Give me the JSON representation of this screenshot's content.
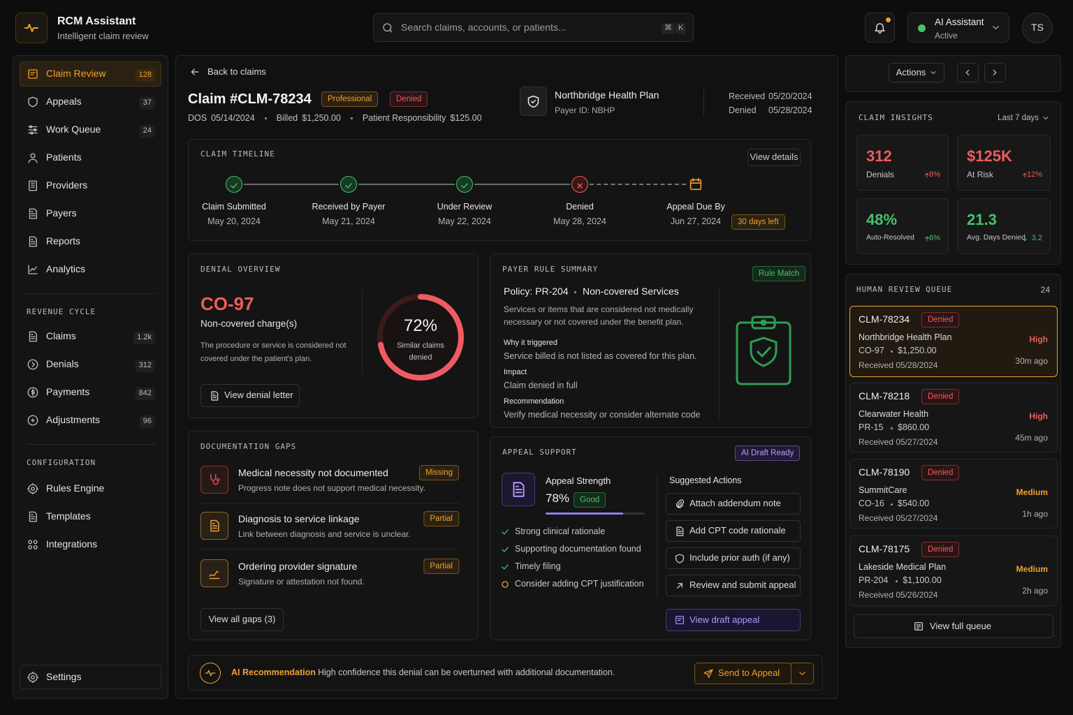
{
  "header": {
    "app_title": "RCM Assistant",
    "app_subtitle": "Intelligent claim review",
    "search_placeholder": "Search claims, accounts, or patients...",
    "shortcut": [
      "⌘",
      "K"
    ],
    "assistant_name": "AI Assistant",
    "assistant_status": "Active",
    "avatar": "TS"
  },
  "sidebar": {
    "main": [
      {
        "label": "Claim Review",
        "count": "128"
      },
      {
        "label": "Appeals",
        "count": "37"
      },
      {
        "label": "Work Queue",
        "count": "24"
      },
      {
        "label": "Patients"
      },
      {
        "label": "Providers"
      },
      {
        "label": "Payers"
      },
      {
        "label": "Reports"
      },
      {
        "label": "Analytics"
      }
    ],
    "revenue_cycle": {
      "heading": "REVENUE CYCLE",
      "items": [
        {
          "label": "Claims",
          "count": "1.2k"
        },
        {
          "label": "Denials",
          "count": "312"
        },
        {
          "label": "Payments",
          "count": "842"
        },
        {
          "label": "Adjustments",
          "count": "96"
        }
      ]
    },
    "configuration": {
      "heading": "CONFIGURATION",
      "items": [
        {
          "label": "Rules Engine"
        },
        {
          "label": "Templates"
        },
        {
          "label": "Integrations"
        }
      ]
    },
    "settings": "Settings"
  },
  "claim": {
    "back": "Back to claims",
    "title": "Claim #CLM-78234",
    "tags": [
      "Professional",
      "Denied"
    ],
    "meta": [
      {
        "label": "DOS",
        "value": "05/14/2024"
      },
      {
        "label": "Billed",
        "value": "$1,250.00"
      },
      {
        "label": "Patient Responsibility",
        "value": "$125.00"
      }
    ],
    "payer": {
      "name": "Northbridge Health Plan",
      "id_label": "Payer ID:",
      "id": "NBHP"
    },
    "dates": [
      {
        "label": "Received",
        "value": "05/20/2024"
      },
      {
        "label": "Denied",
        "value": "05/28/2024"
      }
    ]
  },
  "timeline": {
    "heading": "CLAIM TIMELINE",
    "action": "View details",
    "steps": [
      {
        "label": "Claim Submitted",
        "date": "May 20, 2024",
        "status": "done"
      },
      {
        "label": "Received by Payer",
        "date": "May 21, 2024",
        "status": "done"
      },
      {
        "label": "Under Review",
        "date": "May 22, 2024",
        "status": "done"
      },
      {
        "label": "Denied",
        "date": "May 28, 2024",
        "status": "denied"
      },
      {
        "label": "Appeal Due By",
        "date": "Jun 27, 2024",
        "status": "due",
        "badge": "30 days left"
      }
    ]
  },
  "denial_overview": {
    "heading": "DENIAL OVERVIEW",
    "code": "CO-97",
    "reason": "Non-covered charge(s)",
    "description": "The procedure or service is considered not covered under the patient's plan.",
    "donut": {
      "value": 72,
      "label": "72%"
    },
    "donut_caption": "Similar claims denied",
    "action": "View denial letter"
  },
  "payer_rule": {
    "heading": "PAYER RULE SUMMARY",
    "badge": "Rule Match",
    "policy": "Policy: PR-204",
    "policy_name": "Non-covered Services",
    "description": "Services or items that are considered not medically necessary or not covered under the benefit plan.",
    "sections": [
      {
        "label": "Why it triggered",
        "text": "Service billed is not listed as covered for this plan."
      },
      {
        "label": "Impact",
        "text": "Claim denied in full"
      },
      {
        "label": "Recommendation",
        "text": "Verify medical necessity or consider alternate code"
      }
    ]
  },
  "documentation_gaps": {
    "heading": "DOCUMENTATION GAPS",
    "items": [
      {
        "title": "Medical necessity not documented",
        "detail": "Progress note does not support medical necessity.",
        "status": "Missing",
        "color": "#e5484d"
      },
      {
        "title": "Diagnosis to service linkage",
        "detail": "Link between diagnosis and service is unclear.",
        "status": "Partial",
        "color": "#f0a030"
      },
      {
        "title": "Ordering provider signature",
        "detail": "Signature or attestation not found.",
        "status": "Partial",
        "color": "#f0a030"
      }
    ],
    "action": "View all gaps (3)"
  },
  "appeal_support": {
    "heading": "APPEAL SUPPORT",
    "badge": "AI Draft Ready",
    "strength_label": "Appeal Strength",
    "strength": {
      "value": 78,
      "label": "78%"
    },
    "strength_rating": "Good",
    "checks": [
      {
        "text": "Strong clinical rationale",
        "done": true
      },
      {
        "text": "Supporting documentation found",
        "done": true
      },
      {
        "text": "Timely filing",
        "done": true
      },
      {
        "text": "Consider adding CPT justification",
        "done": false
      }
    ],
    "suggested_heading": "Suggested Actions",
    "actions": [
      "Attach addendum note",
      "Add CPT code rationale",
      "Include prior auth (if any)",
      "Review and submit appeal"
    ],
    "primary_action": "View draft appeal"
  },
  "ai_recommendation": {
    "label": "AI Recommendation",
    "text": "High confidence this denial can be overturned with additional documentation.",
    "action": "Send to Appeal"
  },
  "right_panel": {
    "actions": "Actions",
    "insights": {
      "heading": "CLAIM INSIGHTS",
      "period": "Last 7 days",
      "metrics": [
        {
          "value": "312",
          "label": "Denials",
          "change": "8%",
          "direction": "up",
          "color": "#ef5b5b"
        },
        {
          "value": "$125K",
          "label": "At Risk",
          "change": "12%",
          "direction": "up",
          "color": "#ef5b5b"
        },
        {
          "value": "48%",
          "label": "Auto-Resolved",
          "change": "6%",
          "direction": "up",
          "color": "#46c26b"
        },
        {
          "value": "21.3",
          "label": "Avg. Days Denied",
          "change": "3.2",
          "direction": "down",
          "color": "#46c26b"
        }
      ]
    },
    "queue": {
      "heading": "HUMAN REVIEW QUEUE",
      "count": "24",
      "items": [
        {
          "id": "CLM-78234",
          "status": "Denied",
          "payer": "Northbridge Health Plan",
          "code": "CO-97",
          "amount": "$1,250.00",
          "received": "Received 05/28/2024",
          "priority": "High",
          "color": "#ef5b5b",
          "age": "30m ago",
          "selected": true
        },
        {
          "id": "CLM-78218",
          "status": "Denied",
          "payer": "Clearwater Health",
          "code": "PR-15",
          "amount": "$860.00",
          "received": "Received 05/27/2024",
          "priority": "High",
          "color": "#ef5b5b",
          "age": "45m ago",
          "selected": false
        },
        {
          "id": "CLM-78190",
          "status": "Denied",
          "payer": "SummitCare",
          "code": "CO-16",
          "amount": "$540.00",
          "received": "Received 05/27/2024",
          "priority": "Medium",
          "color": "#f0a030",
          "age": "1h ago",
          "selected": false
        },
        {
          "id": "CLM-78175",
          "status": "Denied",
          "payer": "Lakeside Medical Plan",
          "code": "PR-204",
          "amount": "$1,100.00",
          "received": "Received 05/26/2024",
          "priority": "Medium",
          "color": "#f0a030",
          "age": "2h ago",
          "selected": false
        }
      ],
      "action": "View full queue"
    }
  }
}
